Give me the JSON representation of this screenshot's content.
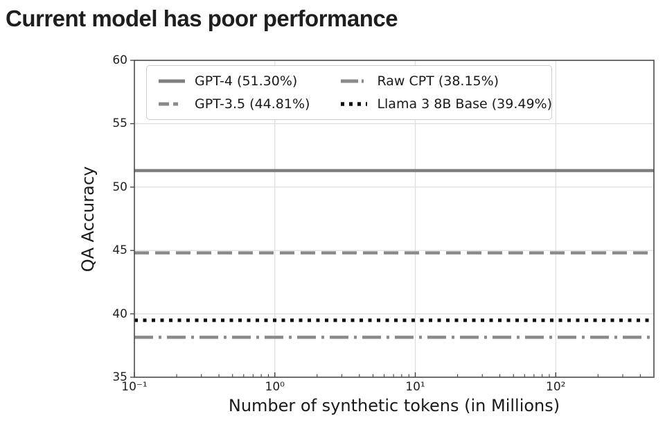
{
  "title": "Current model has poor performance",
  "chart_data": {
    "type": "line",
    "subtype": "horizontal-baselines",
    "title": "Current model has poor performance",
    "xlabel": "Number of synthetic tokens (in Millions)",
    "ylabel": "QA Accuracy",
    "x_scale": "log",
    "xlim": [
      0.1,
      500
    ],
    "ylim": [
      35,
      60
    ],
    "y_ticks": [
      35,
      40,
      45,
      50,
      55,
      60
    ],
    "x_major_ticks": [
      0.1,
      1,
      10,
      100
    ],
    "x_tick_labels": [
      "10⁻¹",
      "10⁰",
      "10¹",
      "10²"
    ],
    "grid": true,
    "legend_position": "upper left, 2 columns",
    "series": [
      {
        "id": "gpt4",
        "name": "GPT-4 (51.30%)",
        "value": 51.3,
        "style": "solid",
        "color": "#7f7f7f"
      },
      {
        "id": "gpt35",
        "name": "GPT-3.5 (44.81%)",
        "value": 44.81,
        "style": "dashed",
        "color": "#8a8a8a"
      },
      {
        "id": "raw-cpt",
        "name": "Raw CPT (38.15%)",
        "value": 38.15,
        "style": "dashdot",
        "color": "#8a8a8a"
      },
      {
        "id": "llama3-8b-base",
        "name": "Llama 3 8B Base (39.49%)",
        "value": 39.49,
        "style": "dotted",
        "color": "#0d0d0d"
      }
    ],
    "colors": {
      "grid": "#dcdcdc",
      "spine": "#4a4a4a",
      "tick": "#3d3d3d",
      "title_text": "#1e1e1e"
    }
  }
}
